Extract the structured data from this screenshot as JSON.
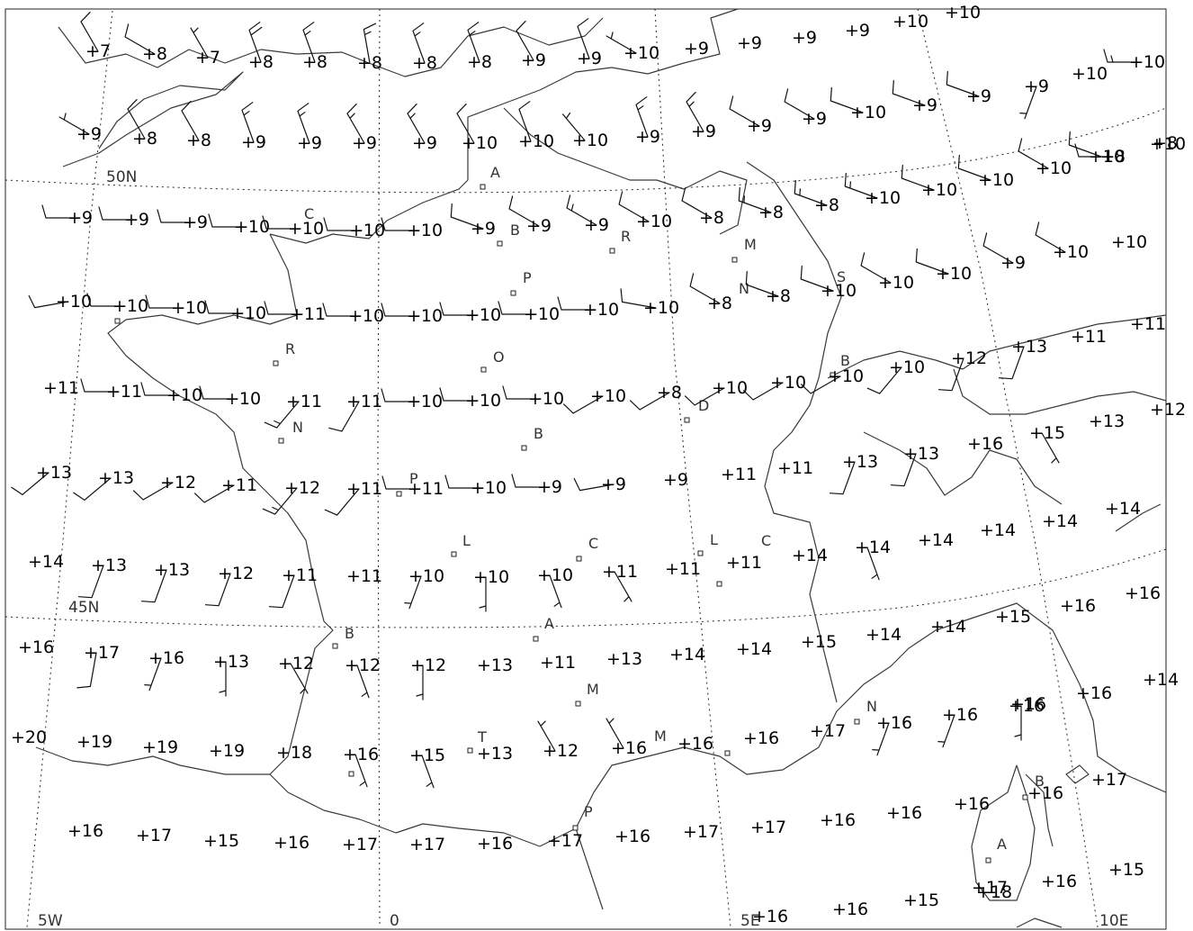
{
  "map": {
    "type": "synoptic weather chart — surface temperature (°C) and wind barbs",
    "graticule_labels": [
      "50N",
      "45N",
      "5W",
      "0",
      "5E",
      "10E"
    ],
    "city_initials": [
      "A",
      "C",
      "B",
      "R",
      "M",
      "P",
      "S",
      "N",
      "R",
      "O",
      "B",
      "N",
      "D",
      "B",
      "P",
      "L",
      "C",
      "L",
      "C",
      "A",
      "B",
      "M",
      "T",
      "M",
      "N",
      "P",
      "B",
      "A"
    ],
    "observations": [
      {
        "label": "+7",
        "dir": 330,
        "spd": 10
      },
      {
        "label": "+8",
        "dir": 300,
        "spd": 10
      },
      {
        "label": "+7",
        "dir": 330,
        "spd": 5
      },
      {
        "label": "+8",
        "dir": 340,
        "spd": 20
      },
      {
        "label": "+8",
        "dir": 340,
        "spd": 15
      },
      {
        "label": "+8",
        "dir": 350,
        "spd": 15
      },
      {
        "label": "+8",
        "dir": 340,
        "spd": 15
      },
      {
        "label": "+8",
        "dir": 340,
        "spd": 15
      },
      {
        "label": "+9",
        "dir": 330,
        "spd": 10
      },
      {
        "label": "+9",
        "dir": 340,
        "spd": 10
      },
      {
        "label": "+10",
        "dir": 300,
        "spd": 5
      },
      {
        "label": "+9",
        "dir": 0,
        "spd": 0
      },
      {
        "label": "+9",
        "dir": 0,
        "spd": 0
      },
      {
        "label": "+9",
        "dir": 0,
        "spd": 0
      },
      {
        "label": "+9",
        "dir": 0,
        "spd": 0
      },
      {
        "label": "+10",
        "dir": 0,
        "spd": 0
      },
      {
        "label": "+10",
        "dir": 0,
        "spd": 0
      },
      {
        "label": "+9",
        "dir": 300,
        "spd": 5
      },
      {
        "label": "+8",
        "dir": 330,
        "spd": 10
      },
      {
        "label": "+8",
        "dir": 330,
        "spd": 10
      },
      {
        "label": "+9",
        "dir": 340,
        "spd": 15
      },
      {
        "label": "+9",
        "dir": 340,
        "spd": 15
      },
      {
        "label": "+9",
        "dir": 330,
        "spd": 15
      },
      {
        "label": "+9",
        "dir": 330,
        "spd": 15
      },
      {
        "label": "+10",
        "dir": 330,
        "spd": 10
      },
      {
        "label": "+10",
        "dir": 340,
        "spd": 10
      },
      {
        "label": "+10",
        "dir": 320,
        "spd": 5
      },
      {
        "label": "+9",
        "dir": 340,
        "spd": 15
      },
      {
        "label": "+9",
        "dir": 330,
        "spd": 15
      },
      {
        "label": "+9",
        "dir": 300,
        "spd": 10
      },
      {
        "label": "+9",
        "dir": 300,
        "spd": 10
      },
      {
        "label": "+10",
        "dir": 290,
        "spd": 10
      },
      {
        "label": "+9",
        "dir": 290,
        "spd": 10
      },
      {
        "label": "+9",
        "dir": 290,
        "spd": 10
      },
      {
        "label": "+9",
        "dir": 200,
        "spd": 5
      },
      {
        "label": "+10",
        "dir": 0,
        "spd": 0
      },
      {
        "label": "+10",
        "dir": 290,
        "spd": 10
      },
      {
        "label": "+8",
        "dir": 270,
        "spd": 10
      },
      {
        "label": "+10",
        "dir": 270,
        "spd": 15
      },
      {
        "label": "+9",
        "dir": 270,
        "spd": 10
      },
      {
        "label": "+9",
        "dir": 270,
        "spd": 10
      },
      {
        "label": "+9",
        "dir": 270,
        "spd": 10
      },
      {
        "label": "+10",
        "dir": 270,
        "spd": 10
      },
      {
        "label": "+10",
        "dir": 270,
        "spd": 10
      },
      {
        "label": "+10",
        "dir": 270,
        "spd": 10
      },
      {
        "label": "+10",
        "dir": 270,
        "spd": 10
      },
      {
        "label": "+9",
        "dir": 290,
        "spd": 10
      },
      {
        "label": "+9",
        "dir": 300,
        "spd": 10
      },
      {
        "label": "+9",
        "dir": 300,
        "spd": 15
      },
      {
        "label": "+10",
        "dir": 300,
        "spd": 10
      },
      {
        "label": "+8",
        "dir": 300,
        "spd": 10
      },
      {
        "label": "+8",
        "dir": 290,
        "spd": 15
      },
      {
        "label": "+8",
        "dir": 290,
        "spd": 15
      },
      {
        "label": "+10",
        "dir": 290,
        "spd": 15
      },
      {
        "label": "+10",
        "dir": 290,
        "spd": 10
      },
      {
        "label": "+10",
        "dir": 290,
        "spd": 10
      },
      {
        "label": "+10",
        "dir": 300,
        "spd": 10
      },
      {
        "label": "+8",
        "dir": 0,
        "spd": 0
      },
      {
        "label": "+10",
        "dir": 0,
        "spd": 0
      },
      {
        "label": "+10",
        "dir": 260,
        "spd": 10
      },
      {
        "label": "+10",
        "dir": 270,
        "spd": 10
      },
      {
        "label": "+10",
        "dir": 270,
        "spd": 10
      },
      {
        "label": "+10",
        "dir": 270,
        "spd": 10
      },
      {
        "label": "+11",
        "dir": 270,
        "spd": 10
      },
      {
        "label": "+10",
        "dir": 270,
        "spd": 10
      },
      {
        "label": "+10",
        "dir": 270,
        "spd": 10
      },
      {
        "label": "+10",
        "dir": 270,
        "spd": 10
      },
      {
        "label": "+10",
        "dir": 270,
        "spd": 10
      },
      {
        "label": "+10",
        "dir": 270,
        "spd": 10
      },
      {
        "label": "+10",
        "dir": 280,
        "spd": 10
      },
      {
        "label": "+8",
        "dir": 300,
        "spd": 10
      },
      {
        "label": "+8",
        "dir": 290,
        "spd": 10
      },
      {
        "label": "+10",
        "dir": 290,
        "spd": 10
      },
      {
        "label": "+10",
        "dir": 300,
        "spd": 10
      },
      {
        "label": "+10",
        "dir": 290,
        "spd": 10
      },
      {
        "label": "+9",
        "dir": 300,
        "spd": 10
      },
      {
        "label": "+10",
        "dir": 300,
        "spd": 10
      },
      {
        "label": "+10",
        "dir": 0,
        "spd": 0
      },
      {
        "label": "+11",
        "dir": 0,
        "spd": 0
      },
      {
        "label": "+11",
        "dir": 270,
        "spd": 10
      },
      {
        "label": "+10",
        "dir": 270,
        "spd": 10
      },
      {
        "label": "+10",
        "dir": 270,
        "spd": 10
      },
      {
        "label": "+11",
        "dir": 220,
        "spd": 15
      },
      {
        "label": "+11",
        "dir": 210,
        "spd": 10
      },
      {
        "label": "+10",
        "dir": 270,
        "spd": 10
      },
      {
        "label": "+10",
        "dir": 270,
        "spd": 10
      },
      {
        "label": "+10",
        "dir": 270,
        "spd": 10
      },
      {
        "label": "+10",
        "dir": 240,
        "spd": 10
      },
      {
        "label": "+8",
        "dir": 240,
        "spd": 10
      },
      {
        "label": "+10",
        "dir": 240,
        "spd": 10
      },
      {
        "label": "+10",
        "dir": 240,
        "spd": 10
      },
      {
        "label": "+10",
        "dir": 240,
        "spd": 10
      },
      {
        "label": "+10",
        "dir": 220,
        "spd": 10
      },
      {
        "label": "+12",
        "dir": 200,
        "spd": 10
      },
      {
        "label": "+13",
        "dir": 200,
        "spd": 10
      },
      {
        "label": "+11",
        "dir": 0,
        "spd": 0
      },
      {
        "label": "+11",
        "dir": 0,
        "spd": 0
      },
      {
        "label": "+12",
        "dir": 0,
        "spd": 0
      },
      {
        "label": "+13",
        "dir": 230,
        "spd": 10
      },
      {
        "label": "+13",
        "dir": 230,
        "spd": 10
      },
      {
        "label": "+12",
        "dir": 240,
        "spd": 10
      },
      {
        "label": "+11",
        "dir": 240,
        "spd": 10
      },
      {
        "label": "+12",
        "dir": 220,
        "spd": 15
      },
      {
        "label": "+11",
        "dir": 220,
        "spd": 10
      },
      {
        "label": "+11",
        "dir": 270,
        "spd": 10
      },
      {
        "label": "+10",
        "dir": 270,
        "spd": 10
      },
      {
        "label": "+9",
        "dir": 270,
        "spd": 10
      },
      {
        "label": "+9",
        "dir": 260,
        "spd": 10
      },
      {
        "label": "+9",
        "dir": 0,
        "spd": 0
      },
      {
        "label": "+11",
        "dir": 0,
        "spd": 0
      },
      {
        "label": "+11",
        "dir": 0,
        "spd": 0
      },
      {
        "label": "+13",
        "dir": 200,
        "spd": 10
      },
      {
        "label": "+13",
        "dir": 200,
        "spd": 10
      },
      {
        "label": "+16",
        "dir": 0,
        "spd": 0
      },
      {
        "label": "+15",
        "dir": 150,
        "spd": 5
      },
      {
        "label": "+13",
        "dir": 0,
        "spd": 0
      },
      {
        "label": "+14",
        "dir": 0,
        "spd": 0
      },
      {
        "label": "+13",
        "dir": 200,
        "spd": 10
      },
      {
        "label": "+13",
        "dir": 200,
        "spd": 10
      },
      {
        "label": "+12",
        "dir": 200,
        "spd": 10
      },
      {
        "label": "+11",
        "dir": 200,
        "spd": 10
      },
      {
        "label": "+11",
        "dir": 0,
        "spd": 0
      },
      {
        "label": "+10",
        "dir": 200,
        "spd": 5
      },
      {
        "label": "+10",
        "dir": 180,
        "spd": 5
      },
      {
        "label": "+10",
        "dir": 160,
        "spd": 5
      },
      {
        "label": "+11",
        "dir": 150,
        "spd": 5
      },
      {
        "label": "+11",
        "dir": 0,
        "spd": 0
      },
      {
        "label": "+11",
        "dir": 0,
        "spd": 0
      },
      {
        "label": "+14",
        "dir": 0,
        "spd": 0
      },
      {
        "label": "+14",
        "dir": 160,
        "spd": 5
      },
      {
        "label": "+14",
        "dir": 0,
        "spd": 0
      },
      {
        "label": "+14",
        "dir": 0,
        "spd": 0
      },
      {
        "label": "+14",
        "dir": 0,
        "spd": 0
      },
      {
        "label": "+14",
        "dir": 0,
        "spd": 0
      },
      {
        "label": "+16",
        "dir": 0,
        "spd": 0
      },
      {
        "label": "+16",
        "dir": 0,
        "spd": 0
      },
      {
        "label": "+17",
        "dir": 190,
        "spd": 10
      },
      {
        "label": "+16",
        "dir": 200,
        "spd": 5
      },
      {
        "label": "+13",
        "dir": 180,
        "spd": 5
      },
      {
        "label": "+12",
        "dir": 150,
        "spd": 5
      },
      {
        "label": "+12",
        "dir": 160,
        "spd": 5
      },
      {
        "label": "+12",
        "dir": 180,
        "spd": 5
      },
      {
        "label": "+13",
        "dir": 0,
        "spd": 0
      },
      {
        "label": "+11",
        "dir": 0,
        "spd": 0
      },
      {
        "label": "+13",
        "dir": 0,
        "spd": 0
      },
      {
        "label": "+14",
        "dir": 0,
        "spd": 0
      },
      {
        "label": "+14",
        "dir": 0,
        "spd": 0
      },
      {
        "label": "+15",
        "dir": 0,
        "spd": 0
      },
      {
        "label": "+14",
        "dir": 0,
        "spd": 0
      },
      {
        "label": "+14",
        "dir": 0,
        "spd": 0
      },
      {
        "label": "+15",
        "dir": 0,
        "spd": 0
      },
      {
        "label": "+16",
        "dir": 0,
        "spd": 0
      },
      {
        "label": "+16",
        "dir": 0,
        "spd": 0
      },
      {
        "label": "+16",
        "dir": 0,
        "spd": 0
      },
      {
        "label": "+14",
        "dir": 0,
        "spd": 0
      },
      {
        "label": "+20",
        "dir": 0,
        "spd": 0
      },
      {
        "label": "+19",
        "dir": 0,
        "spd": 0
      },
      {
        "label": "+19",
        "dir": 0,
        "spd": 0
      },
      {
        "label": "+19",
        "dir": 0,
        "spd": 0
      },
      {
        "label": "+18",
        "dir": 0,
        "spd": 0
      },
      {
        "label": "+16",
        "dir": 160,
        "spd": 5
      },
      {
        "label": "+15",
        "dir": 160,
        "spd": 5
      },
      {
        "label": "+13",
        "dir": 0,
        "spd": 0
      },
      {
        "label": "+12",
        "dir": 330,
        "spd": 5
      },
      {
        "label": "+16",
        "dir": 330,
        "spd": 5
      },
      {
        "label": "+16",
        "dir": 0,
        "spd": 0
      },
      {
        "label": "+16",
        "dir": 0,
        "spd": 0
      },
      {
        "label": "+17",
        "dir": 0,
        "spd": 0
      },
      {
        "label": "+16",
        "dir": 200,
        "spd": 5
      },
      {
        "label": "+16",
        "dir": 200,
        "spd": 5
      },
      {
        "label": "+16",
        "dir": 180,
        "spd": 5
      },
      {
        "label": "+16",
        "dir": 0,
        "spd": 0
      },
      {
        "label": "+17",
        "dir": 0,
        "spd": 0
      },
      {
        "label": "+18",
        "dir": 0,
        "spd": 0
      },
      {
        "label": "+16",
        "dir": 0,
        "spd": 0
      },
      {
        "label": "+17",
        "dir": 0,
        "spd": 0
      },
      {
        "label": "+15",
        "dir": 0,
        "spd": 0
      },
      {
        "label": "+16",
        "dir": 0,
        "spd": 0
      },
      {
        "label": "+17",
        "dir": 0,
        "spd": 0
      },
      {
        "label": "+17",
        "dir": 0,
        "spd": 0
      },
      {
        "label": "+16",
        "dir": 0,
        "spd": 0
      },
      {
        "label": "+17",
        "dir": 0,
        "spd": 0
      },
      {
        "label": "+16",
        "dir": 0,
        "spd": 0
      },
      {
        "label": "+17",
        "dir": 0,
        "spd": 0
      },
      {
        "label": "+17",
        "dir": 0,
        "spd": 0
      },
      {
        "label": "+16",
        "dir": 0,
        "spd": 0
      },
      {
        "label": "+16",
        "dir": 0,
        "spd": 0
      },
      {
        "label": "+16",
        "dir": 0,
        "spd": 0
      },
      {
        "label": "+16",
        "dir": 0,
        "spd": 0
      },
      {
        "label": "+15",
        "dir": 0,
        "spd": 0
      },
      {
        "label": "+15",
        "dir": 0,
        "spd": 0
      },
      {
        "label": "+16",
        "dir": 0,
        "spd": 0
      },
      {
        "label": "+16",
        "dir": 0,
        "spd": 0
      },
      {
        "label": "+17",
        "dir": 0,
        "spd": 0
      }
    ]
  }
}
